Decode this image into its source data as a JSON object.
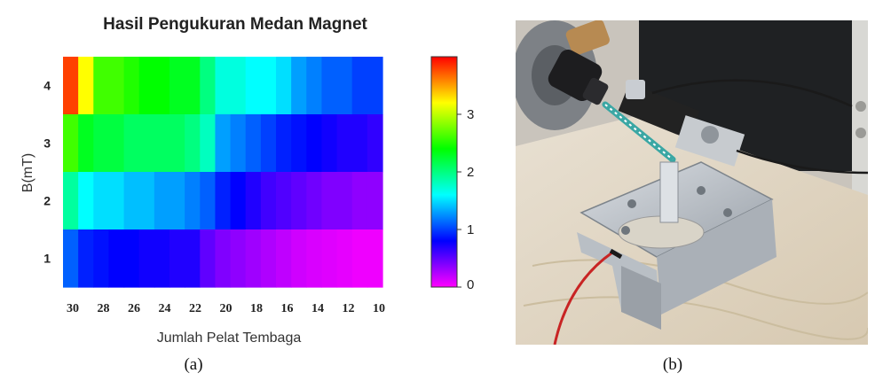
{
  "figure": {
    "captions": [
      "(a)",
      "(b)"
    ]
  },
  "chart_data": {
    "type": "heatmap",
    "title": "Hasil Pengukuran Medan Magnet",
    "xlabel": "Jumlah Pelat Tembaga",
    "ylabel": "B(mT)",
    "x_tick_labels": [
      "30",
      "28",
      "26",
      "24",
      "22",
      "20",
      "18",
      "16",
      "14",
      "12",
      "10"
    ],
    "y_tick_labels": [
      "4",
      "3",
      "2",
      "1"
    ],
    "x": [
      30,
      29,
      28,
      27,
      26,
      25,
      24,
      23,
      22,
      21,
      20,
      19,
      18,
      17,
      16,
      15,
      14,
      13,
      12,
      11,
      10
    ],
    "rows": [
      {
        "label": "4",
        "values": [
          3.8,
          3.2,
          2.6,
          2.6,
          2.5,
          2.4,
          2.4,
          2.3,
          2.3,
          2.0,
          1.7,
          1.7,
          1.6,
          1.6,
          1.5,
          1.3,
          1.2,
          1.1,
          1.1,
          1.0,
          1.0
        ]
      },
      {
        "label": "3",
        "values": [
          2.6,
          2.3,
          2.2,
          2.2,
          2.1,
          2.1,
          2.1,
          2.1,
          2.0,
          1.8,
          1.3,
          1.2,
          1.1,
          1.0,
          0.9,
          0.85,
          0.8,
          0.75,
          0.7,
          0.7,
          0.65
        ]
      },
      {
        "label": "2",
        "values": [
          1.9,
          1.6,
          1.5,
          1.5,
          1.4,
          1.4,
          1.3,
          1.3,
          1.2,
          1.1,
          0.9,
          0.8,
          0.7,
          0.6,
          0.55,
          0.5,
          0.45,
          0.4,
          0.4,
          0.35,
          0.35
        ]
      },
      {
        "label": "1",
        "values": [
          1.1,
          0.9,
          0.85,
          0.8,
          0.8,
          0.75,
          0.75,
          0.7,
          0.7,
          0.5,
          0.4,
          0.35,
          0.3,
          0.25,
          0.2,
          0.15,
          0.12,
          0.1,
          0.08,
          0.05,
          0.05
        ]
      }
    ],
    "colorbar": {
      "range": [
        0,
        4
      ],
      "ticks": [
        "0",
        "1",
        "2",
        "3"
      ],
      "colormap": [
        "#ff00ff",
        "#0000ff",
        "#00ffff",
        "#00ff00",
        "#ffff00",
        "#ff0000"
      ]
    },
    "grid": false,
    "colorbar_position": "right"
  }
}
